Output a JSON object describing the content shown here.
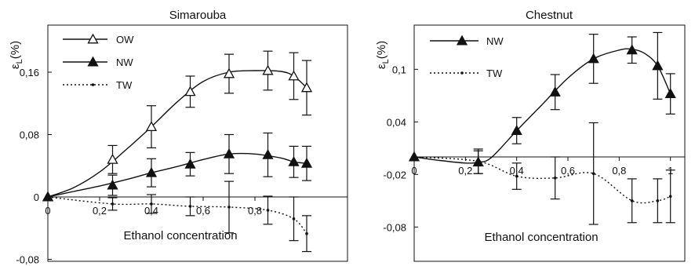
{
  "chart_data": [
    {
      "type": "line",
      "title": "Simarouba",
      "xlabel": "Ethanol concentration",
      "ylabel": "ε",
      "ylabel_sub": "L",
      "ylabel_unit": "(%)",
      "xlim": [
        0,
        1
      ],
      "ylim": [
        -0.08,
        0.2
      ],
      "xticks": [
        0,
        0.2,
        0.4,
        0.6,
        0.8
      ],
      "xtick_labels": [
        "0",
        "0,2",
        "0,4",
        "0,6",
        "0,8"
      ],
      "yticks": [
        -0.08,
        0,
        0.08,
        0.16
      ],
      "ytick_labels": [
        "-0,08",
        "0",
        "0,08",
        "0,16"
      ],
      "grid": false,
      "legend": "top-left",
      "series": [
        {
          "name": "OW",
          "marker": "open-triangle",
          "line": "solid",
          "x": [
            0,
            0.25,
            0.4,
            0.55,
            0.7,
            0.85,
            0.95,
            1.0
          ],
          "y": [
            0,
            0.048,
            0.09,
            0.135,
            0.158,
            0.162,
            0.155,
            0.14
          ],
          "err": [
            0,
            0.018,
            0.027,
            0.02,
            0.025,
            0.025,
            0.03,
            0.035
          ],
          "curve_x": [
            0,
            0.1,
            0.2,
            0.3,
            0.4,
            0.5,
            0.6,
            0.7,
            0.8,
            0.9,
            0.95,
            1.0
          ],
          "curve_y": [
            0,
            0.012,
            0.032,
            0.06,
            0.09,
            0.122,
            0.148,
            0.16,
            0.162,
            0.161,
            0.155,
            0.14
          ]
        },
        {
          "name": "NW",
          "marker": "filled-triangle",
          "line": "solid",
          "x": [
            0,
            0.25,
            0.4,
            0.55,
            0.7,
            0.85,
            0.95,
            1.0
          ],
          "y": [
            0,
            0.015,
            0.031,
            0.042,
            0.055,
            0.054,
            0.045,
            0.043
          ],
          "err": [
            0,
            0.013,
            0.018,
            0.015,
            0.025,
            0.028,
            0.02,
            0.022
          ],
          "curve_x": [
            0,
            0.1,
            0.2,
            0.3,
            0.4,
            0.5,
            0.6,
            0.7,
            0.8,
            0.9,
            0.95,
            1.0
          ],
          "curve_y": [
            0,
            0.007,
            0.014,
            0.022,
            0.031,
            0.039,
            0.048,
            0.055,
            0.055,
            0.05,
            0.045,
            0.043
          ]
        },
        {
          "name": "TW",
          "marker": "small-dot",
          "line": "dotted",
          "x": [
            0,
            0.25,
            0.4,
            0.55,
            0.7,
            0.85,
            0.95,
            1.0
          ],
          "y": [
            0,
            -0.009,
            -0.009,
            -0.012,
            -0.013,
            -0.017,
            -0.028,
            -0.047
          ],
          "err": [
            0,
            0.008,
            0.012,
            0.012,
            0.033,
            0.018,
            0.028,
            0.023
          ],
          "curve_x": [
            0,
            0.25,
            0.4,
            0.55,
            0.7,
            0.85,
            0.95,
            1.0
          ],
          "curve_y": [
            0,
            -0.009,
            -0.009,
            -0.012,
            -0.013,
            -0.017,
            -0.028,
            -0.047
          ]
        }
      ]
    },
    {
      "type": "line",
      "title": "Chestnut",
      "xlabel": "Ethanol concentration",
      "ylabel": "ε",
      "ylabel_sub": "L",
      "ylabel_unit": "(%)",
      "xlim": [
        0,
        1.05
      ],
      "ylim": [
        -0.08,
        0.1
      ],
      "xticks": [
        0,
        0.2,
        0.4,
        0.6,
        0.8,
        1
      ],
      "xtick_labels": [
        "0",
        "0,2",
        "0,4",
        "0,6",
        "0,8",
        "1"
      ],
      "yticks": [
        -0.08,
        -0.02,
        0.04,
        0.1
      ],
      "ytick_labels": [
        "-0,08",
        "-0,02",
        "0,04",
        "0,1"
      ],
      "grid": false,
      "legend": "top-left",
      "series": [
        {
          "name": "NW",
          "marker": "filled-triangle",
          "line": "solid",
          "x": [
            0,
            0.25,
            0.4,
            0.55,
            0.7,
            0.85,
            0.95,
            1.0
          ],
          "y": [
            0,
            -0.006,
            0.03,
            0.074,
            0.112,
            0.122,
            0.104,
            0.072
          ],
          "err": [
            0,
            0.013,
            0.015,
            0.02,
            0.028,
            0.015,
            0.038,
            0.023
          ],
          "curve_x": [
            0,
            0.1,
            0.2,
            0.25,
            0.3,
            0.4,
            0.5,
            0.6,
            0.7,
            0.8,
            0.85,
            0.9,
            0.95,
            1.0
          ],
          "curve_y": [
            0,
            -0.004,
            -0.007,
            -0.006,
            -0.001,
            0.03,
            0.06,
            0.09,
            0.112,
            0.122,
            0.123,
            0.118,
            0.104,
            0.072
          ]
        },
        {
          "name": "TW",
          "marker": "small-dot",
          "line": "dotted",
          "x": [
            0,
            0.25,
            0.4,
            0.55,
            0.7,
            0.85,
            0.95,
            1.0
          ],
          "y": [
            0,
            -0.005,
            -0.022,
            -0.024,
            -0.019,
            -0.05,
            -0.05,
            -0.045
          ],
          "err": [
            0,
            0.014,
            0.015,
            0.024,
            0.058,
            0.025,
            0.025,
            0.03
          ],
          "curve_x": [
            0,
            0.25,
            0.4,
            0.55,
            0.7,
            0.85,
            0.95,
            1.0
          ],
          "curve_y": [
            0,
            -0.005,
            -0.022,
            -0.024,
            -0.019,
            -0.05,
            -0.05,
            -0.045
          ]
        }
      ]
    }
  ]
}
